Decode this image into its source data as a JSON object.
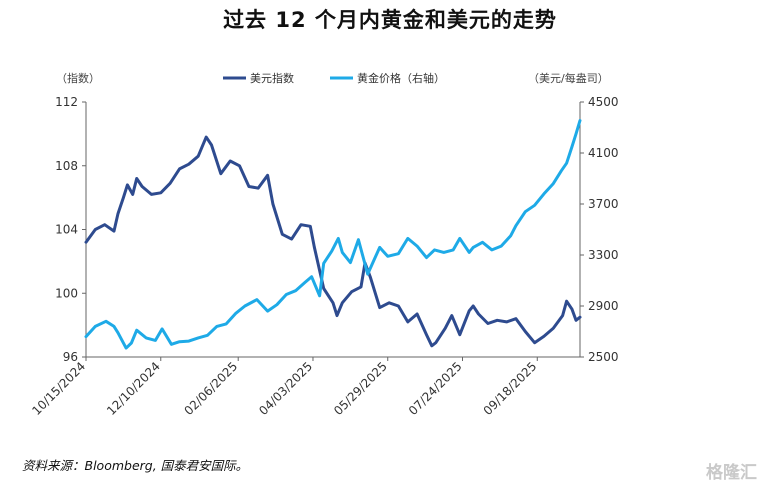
{
  "title": "过去 12 个月内黄金和美元的走势",
  "source_note": "资料来源：Bloomberg, 国泰君安国际。",
  "watermark": "格隆汇",
  "colors": {
    "dxy": "#2e4b8f",
    "gold": "#1eaae7",
    "axis": "#666666"
  },
  "chart_data": {
    "type": "line",
    "title": "过去 12 个月内黄金和美元的走势",
    "legend_position": "top-center",
    "grid": false,
    "y_left": {
      "unit": "（指数）",
      "range": [
        96,
        112
      ],
      "ticks": [
        96,
        100,
        104,
        108,
        112
      ]
    },
    "y_right": {
      "unit": "（美元/每盎司）",
      "range": [
        2500,
        4500
      ],
      "ticks": [
        2500,
        2900,
        3300,
        3700,
        4100,
        4500
      ]
    },
    "x_range": [
      "2024-10-15",
      "2025-10-20"
    ],
    "x_tick_labels": [
      "10/15/2024",
      "12/10/2024",
      "02/06/2025",
      "04/03/2025",
      "05/29/2025",
      "07/24/2025",
      "09/18/2025"
    ],
    "x_tick_dates": [
      "2024-10-15",
      "2024-12-10",
      "2025-02-06",
      "2025-04-03",
      "2025-05-29",
      "2025-07-24",
      "2025-09-18"
    ],
    "series": [
      {
        "name": "美元指数",
        "axis": "left",
        "color": "#2e4b8f",
        "points": [
          [
            "2024-10-15",
            103.2
          ],
          [
            "2024-10-22",
            104.0
          ],
          [
            "2024-10-29",
            104.3
          ],
          [
            "2024-11-05",
            103.9
          ],
          [
            "2024-11-08",
            105.0
          ],
          [
            "2024-11-12",
            106.0
          ],
          [
            "2024-11-15",
            106.8
          ],
          [
            "2024-11-19",
            106.2
          ],
          [
            "2024-11-22",
            107.2
          ],
          [
            "2024-11-26",
            106.7
          ],
          [
            "2024-12-03",
            106.2
          ],
          [
            "2024-12-10",
            106.3
          ],
          [
            "2024-12-17",
            106.9
          ],
          [
            "2024-12-24",
            107.8
          ],
          [
            "2024-12-31",
            108.1
          ],
          [
            "2025-01-07",
            108.6
          ],
          [
            "2025-01-13",
            109.8
          ],
          [
            "2025-01-17",
            109.3
          ],
          [
            "2025-01-24",
            107.5
          ],
          [
            "2025-01-31",
            108.3
          ],
          [
            "2025-02-07",
            108.0
          ],
          [
            "2025-02-14",
            106.7
          ],
          [
            "2025-02-21",
            106.6
          ],
          [
            "2025-02-28",
            107.4
          ],
          [
            "2025-03-04",
            105.6
          ],
          [
            "2025-03-11",
            103.7
          ],
          [
            "2025-03-18",
            103.4
          ],
          [
            "2025-03-25",
            104.3
          ],
          [
            "2025-04-01",
            104.2
          ],
          [
            "2025-04-04",
            102.9
          ],
          [
            "2025-04-11",
            100.3
          ],
          [
            "2025-04-18",
            99.4
          ],
          [
            "2025-04-21",
            98.6
          ],
          [
            "2025-04-25",
            99.4
          ],
          [
            "2025-05-02",
            100.1
          ],
          [
            "2025-05-09",
            100.4
          ],
          [
            "2025-05-12",
            101.9
          ],
          [
            "2025-05-16",
            101.0
          ],
          [
            "2025-05-23",
            99.1
          ],
          [
            "2025-05-30",
            99.4
          ],
          [
            "2025-06-06",
            99.2
          ],
          [
            "2025-06-13",
            98.2
          ],
          [
            "2025-06-20",
            98.7
          ],
          [
            "2025-06-27",
            97.4
          ],
          [
            "2025-07-01",
            96.7
          ],
          [
            "2025-07-04",
            96.9
          ],
          [
            "2025-07-11",
            97.8
          ],
          [
            "2025-07-16",
            98.6
          ],
          [
            "2025-07-22",
            97.4
          ],
          [
            "2025-07-29",
            98.9
          ],
          [
            "2025-08-01",
            99.2
          ],
          [
            "2025-08-05",
            98.7
          ],
          [
            "2025-08-12",
            98.1
          ],
          [
            "2025-08-19",
            98.3
          ],
          [
            "2025-08-26",
            98.2
          ],
          [
            "2025-09-02",
            98.4
          ],
          [
            "2025-09-09",
            97.6
          ],
          [
            "2025-09-16",
            96.9
          ],
          [
            "2025-09-23",
            97.3
          ],
          [
            "2025-09-30",
            97.8
          ],
          [
            "2025-10-07",
            98.6
          ],
          [
            "2025-10-10",
            99.5
          ],
          [
            "2025-10-14",
            99.0
          ],
          [
            "2025-10-17",
            98.3
          ],
          [
            "2025-10-20",
            98.5
          ]
        ]
      },
      {
        "name": "黄金价格（右轴）",
        "axis": "right",
        "color": "#1eaae7",
        "points": [
          [
            "2024-10-15",
            2660
          ],
          [
            "2024-10-22",
            2740
          ],
          [
            "2024-10-30",
            2780
          ],
          [
            "2024-11-05",
            2740
          ],
          [
            "2024-11-08",
            2690
          ],
          [
            "2024-11-14",
            2570
          ],
          [
            "2024-11-18",
            2610
          ],
          [
            "2024-11-22",
            2710
          ],
          [
            "2024-11-29",
            2650
          ],
          [
            "2024-12-06",
            2630
          ],
          [
            "2024-12-11",
            2720
          ],
          [
            "2024-12-18",
            2600
          ],
          [
            "2024-12-24",
            2620
          ],
          [
            "2024-12-31",
            2625
          ],
          [
            "2025-01-07",
            2650
          ],
          [
            "2025-01-14",
            2670
          ],
          [
            "2025-01-21",
            2740
          ],
          [
            "2025-01-28",
            2760
          ],
          [
            "2025-02-04",
            2840
          ],
          [
            "2025-02-11",
            2900
          ],
          [
            "2025-02-20",
            2950
          ],
          [
            "2025-02-28",
            2860
          ],
          [
            "2025-03-07",
            2910
          ],
          [
            "2025-03-14",
            2990
          ],
          [
            "2025-03-21",
            3020
          ],
          [
            "2025-03-28",
            3085
          ],
          [
            "2025-04-02",
            3130
          ],
          [
            "2025-04-08",
            2980
          ],
          [
            "2025-04-11",
            3235
          ],
          [
            "2025-04-17",
            3330
          ],
          [
            "2025-04-22",
            3430
          ],
          [
            "2025-04-25",
            3320
          ],
          [
            "2025-05-01",
            3240
          ],
          [
            "2025-05-07",
            3420
          ],
          [
            "2025-05-14",
            3150
          ],
          [
            "2025-05-20",
            3290
          ],
          [
            "2025-05-23",
            3360
          ],
          [
            "2025-05-29",
            3290
          ],
          [
            "2025-06-06",
            3310
          ],
          [
            "2025-06-13",
            3430
          ],
          [
            "2025-06-20",
            3370
          ],
          [
            "2025-06-27",
            3280
          ],
          [
            "2025-07-03",
            3340
          ],
          [
            "2025-07-10",
            3320
          ],
          [
            "2025-07-17",
            3340
          ],
          [
            "2025-07-22",
            3430
          ],
          [
            "2025-07-29",
            3320
          ],
          [
            "2025-08-01",
            3360
          ],
          [
            "2025-08-08",
            3400
          ],
          [
            "2025-08-15",
            3340
          ],
          [
            "2025-08-22",
            3370
          ],
          [
            "2025-08-29",
            3450
          ],
          [
            "2025-09-02",
            3530
          ],
          [
            "2025-09-09",
            3640
          ],
          [
            "2025-09-16",
            3690
          ],
          [
            "2025-09-23",
            3780
          ],
          [
            "2025-09-30",
            3860
          ],
          [
            "2025-10-06",
            3960
          ],
          [
            "2025-10-10",
            4020
          ],
          [
            "2025-10-14",
            4150
          ],
          [
            "2025-10-17",
            4250
          ],
          [
            "2025-10-20",
            4355
          ]
        ]
      }
    ]
  }
}
